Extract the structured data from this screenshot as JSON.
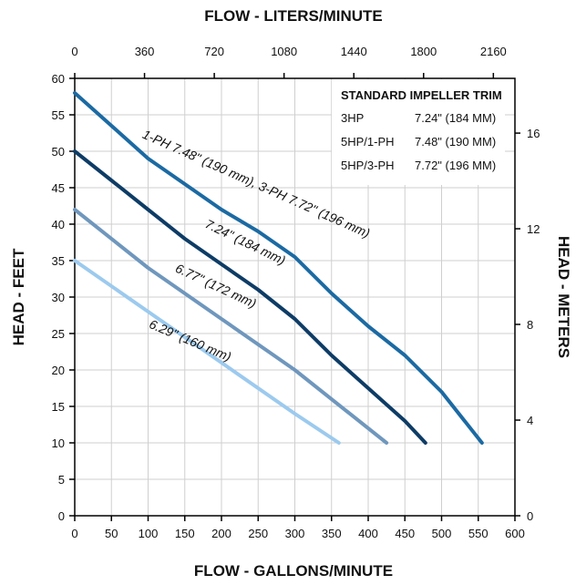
{
  "chart_data": {
    "type": "line",
    "title": "",
    "xlabel": "FLOW - GALLONS/MINUTE",
    "ylabel": "HEAD - FEET",
    "x2label": "FLOW - LITERS/MINUTE",
    "y2label": "HEAD - METERS",
    "xlim": [
      0,
      600
    ],
    "ylim": [
      0,
      60
    ],
    "x_ticks": [
      "0",
      "50",
      "100",
      "150",
      "200",
      "250",
      "300",
      "350",
      "400",
      "450",
      "500",
      "550",
      "600"
    ],
    "y_ticks": [
      "0",
      "5",
      "10",
      "15",
      "20",
      "25",
      "30",
      "35",
      "40",
      "45",
      "50",
      "55",
      "60"
    ],
    "x2_ticks": [
      {
        "label": "0",
        "gpm": 0
      },
      {
        "label": "360",
        "gpm": 95.1
      },
      {
        "label": "720",
        "gpm": 190.2
      },
      {
        "label": "1080",
        "gpm": 285.3
      },
      {
        "label": "1440",
        "gpm": 380.4
      },
      {
        "label": "1800",
        "gpm": 475.5
      },
      {
        "label": "2160",
        "gpm": 570.6
      }
    ],
    "y2_ticks": [
      {
        "label": "0",
        "feet": 0
      },
      {
        "label": "4",
        "feet": 13.12
      },
      {
        "label": "8",
        "feet": 26.25
      },
      {
        "label": "12",
        "feet": 39.37
      },
      {
        "label": "16",
        "feet": 52.49
      }
    ],
    "grid": true,
    "series": [
      {
        "name": "1-PH 7.48\" (190 mm), 3-PH 7.72\" (196 mm)",
        "color": "#1b6aa3",
        "x": [
          0,
          50,
          100,
          150,
          200,
          250,
          300,
          350,
          400,
          450,
          500,
          555
        ],
        "y": [
          58,
          53.5,
          49,
          45.5,
          42,
          39,
          35.5,
          30.5,
          26,
          22,
          17,
          10
        ]
      },
      {
        "name": "7.24\" (184 mm)",
        "color": "#0d3c66",
        "x": [
          0,
          50,
          100,
          150,
          200,
          250,
          300,
          350,
          400,
          450,
          478
        ],
        "y": [
          50,
          46,
          42,
          38,
          34.5,
          31,
          27,
          22,
          17.5,
          13,
          10
        ]
      },
      {
        "name": "6.77\" (172 mm)",
        "color": "#6f97bd",
        "x": [
          0,
          100,
          200,
          300,
          425
        ],
        "y": [
          42,
          34,
          27,
          20,
          10
        ]
      },
      {
        "name": "6.29\" (160 mm)",
        "color": "#9ccaee",
        "x": [
          0,
          100,
          200,
          300,
          360
        ],
        "y": [
          35,
          28,
          21,
          14,
          10
        ]
      }
    ],
    "curve_labels": [
      {
        "text": "1-PH 7.48\" (190 mm), 3-PH 7.72\" (196 mm)",
        "x": 245,
        "y": 45,
        "angle": 24
      },
      {
        "text": "7.24\" (184 mm)",
        "x": 230,
        "y": 37,
        "angle": 26
      },
      {
        "text": "6.77\" (172 mm)",
        "x": 190,
        "y": 31,
        "angle": 25
      },
      {
        "text": "6.29\" (160 mm)",
        "x": 155,
        "y": 23.5,
        "angle": 23
      }
    ],
    "legend": {
      "placement": "top-right",
      "title": "STANDARD IMPELLER TRIM",
      "rows": [
        {
          "model": "3HP",
          "trim": "7.24\" (184 MM)"
        },
        {
          "model": "5HP/1-PH",
          "trim": "7.48\" (190 MM)"
        },
        {
          "model": "5HP/3-PH",
          "trim": "7.72\" (196 MM)"
        }
      ]
    }
  }
}
